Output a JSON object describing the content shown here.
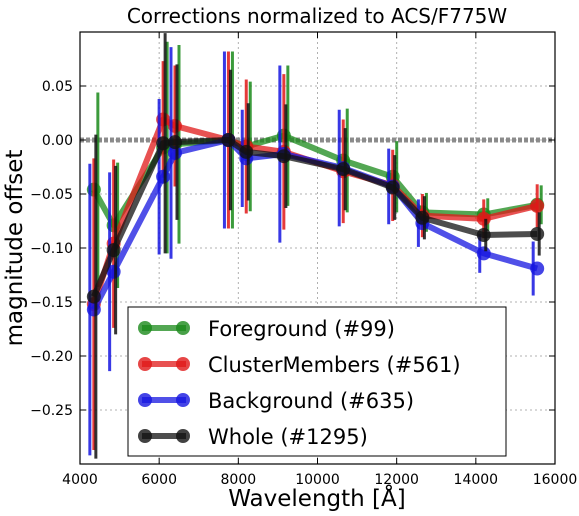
{
  "chart_data": {
    "type": "line",
    "title": "Corrections normalized to ACS/F775W",
    "xlabel": "Wavelength [Å]",
    "ylabel": "magnitude offset",
    "xlim": [
      4000,
      16000
    ],
    "ylim": [
      -0.3,
      0.1
    ],
    "xticks": [
      4000,
      6000,
      8000,
      10000,
      12000,
      14000,
      16000
    ],
    "yticks": [
      -0.25,
      -0.2,
      -0.15,
      -0.1,
      -0.05,
      0.0,
      0.05
    ],
    "ytick_labels": [
      "−0.25",
      "−0.20",
      "−0.15",
      "−0.10",
      "−0.05",
      "0.00",
      "0.05"
    ],
    "grid": true,
    "legend_position": "lower-center",
    "reference_line": {
      "y": 0.0,
      "style": "dotted",
      "color": "#808080"
    },
    "x": [
      4350,
      4850,
      6100,
      6400,
      7750,
      8200,
      9150,
      10650,
      11900,
      12650,
      14200,
      15550
    ],
    "series": [
      {
        "name": "Foreground (#99)",
        "color": "#1a8a1a",
        "values": [
          -0.046,
          -0.079,
          -0.007,
          -0.004,
          0.0,
          -0.006,
          0.004,
          -0.019,
          -0.034,
          -0.067,
          -0.069,
          -0.06
        ],
        "errors": [
          0.09,
          0.058,
          0.098,
          0.092,
          0.082,
          0.06,
          0.065,
          0.048,
          0.033,
          0.018,
          0.015,
          0.018
        ]
      },
      {
        "name": "ClusterMembers (#561)",
        "color": "#e01818",
        "values": [
          -0.152,
          -0.096,
          0.019,
          0.013,
          0.0,
          -0.006,
          -0.011,
          -0.029,
          -0.042,
          -0.07,
          -0.073,
          -0.061
        ],
        "errors": [
          0.135,
          0.078,
          0.054,
          0.056,
          0.082,
          0.062,
          0.072,
          0.048,
          0.033,
          0.02,
          0.018,
          0.02
        ]
      },
      {
        "name": "Background (#635)",
        "color": "#1515e0",
        "values": [
          -0.157,
          -0.122,
          -0.034,
          -0.012,
          0.0,
          -0.017,
          -0.013,
          -0.026,
          -0.043,
          -0.077,
          -0.105,
          -0.119
        ],
        "errors": [
          0.135,
          0.092,
          0.072,
          0.098,
          0.082,
          0.045,
          0.082,
          0.054,
          0.035,
          0.022,
          0.018,
          0.025
        ]
      },
      {
        "name": "Whole (#1295)",
        "color": "#111111",
        "values": [
          -0.145,
          -0.102,
          -0.003,
          -0.002,
          0.0,
          -0.011,
          -0.015,
          -0.027,
          -0.044,
          -0.072,
          -0.088,
          -0.087
        ],
        "errors": [
          0.15,
          0.078,
          0.102,
          0.072,
          0.065,
          0.045,
          0.048,
          0.038,
          0.03,
          0.02,
          0.015,
          0.02
        ]
      }
    ]
  }
}
